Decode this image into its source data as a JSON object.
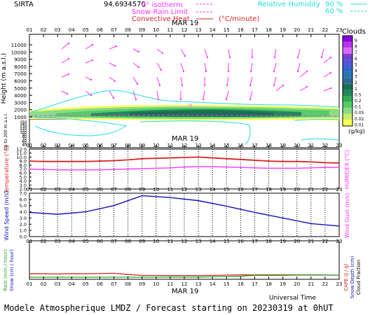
{
  "header": {
    "station": "SIRTA",
    "altitude_value": "94.69",
    "altitude_unit": "34570",
    "legend_isotherm": "0° isotherm",
    "legend_snowrain": "Snow-Rain Limit",
    "legend_convective": "Convective Heat",
    "legend_convective_unit": "(°C/minute)",
    "legend_rh": "Relative Humidity",
    "rh_90": "90 %",
    "rh_60": "60 %"
  },
  "colors": {
    "magenta": "#ff33ff",
    "cyan": "#22dddd",
    "red": "#dd2222",
    "blue": "#1111bb",
    "green": "#22aa22"
  },
  "date_label": "MAR 19",
  "hours": [
    "01",
    "02",
    "03",
    "04",
    "05",
    "06",
    "07",
    "08",
    "09",
    "10",
    "11",
    "12",
    "13",
    "14",
    "15",
    "16",
    "17",
    "18",
    "19",
    "20",
    "21",
    "22",
    "23"
  ],
  "footer": {
    "universal_time": "Universal Time",
    "model_line": "Modele Atmospherique LMDZ / Forecast starting on 20230319 at 0hUT"
  },
  "clouds_legend": {
    "title": "Clouds",
    "unit": "(g/kg)",
    "labels": [
      "9",
      "8",
      "7",
      "6",
      "5",
      "4",
      "3",
      "2",
      "1",
      "0.5",
      "0.2",
      "0.1",
      "0.05",
      "0.02",
      "0.01"
    ],
    "colors": [
      "#8800dd",
      "#bb33ee",
      "#dd66ff",
      "#7744cc",
      "#5555dd",
      "#3366cc",
      "#2277aa",
      "#336699",
      "#1a6e55",
      "#228855",
      "#33aa55",
      "#55cc66",
      "#88dd88",
      "#ccee66",
      "#ffff55"
    ]
  },
  "chart_data": [
    {
      "type": "heatmap",
      "title": "Clouds",
      "ylabel": "Height (m a.s.l.)",
      "ylabel_low": "Up to 200 m a.s.l.",
      "yticks_upper": [
        "11000",
        "10000",
        "9000",
        "8000",
        "7000",
        "6000",
        "5000",
        "4000",
        "3000",
        "2000",
        "1000"
      ],
      "yticks_lower": [
        "150",
        "140",
        "130",
        "120",
        "110",
        "100",
        "90",
        "80",
        "70",
        "60",
        "50",
        "40"
      ],
      "isotherm_label": "-10"
    },
    {
      "type": "line",
      "ylabel_left": "Temperature (°C)",
      "ylabel_right": "HUMIDEX (°C)",
      "yticks": [
        "12.0",
        "11.0",
        "10.0",
        "9.0",
        "8.0",
        "7.0",
        "6.0",
        "5.0",
        "4.0",
        "3.0",
        "2.0"
      ],
      "ylim": [
        2,
        12
      ],
      "x": [
        1,
        2,
        3,
        4,
        5,
        6,
        7,
        8,
        9,
        10,
        11,
        12,
        13,
        14,
        15,
        16,
        17,
        18,
        19,
        20,
        21,
        22,
        23
      ],
      "series": [
        {
          "name": "Temperature",
          "values": [
            9.0,
            8.9,
            8.9,
            8.9,
            8.9,
            9.0,
            9.1,
            9.3,
            9.6,
            9.7,
            9.8,
            9.9,
            10.0,
            9.8,
            9.6,
            9.4,
            9.2,
            9.0,
            8.9,
            8.9,
            8.8,
            8.6,
            8.5
          ]
        },
        {
          "values": [
            7.0,
            6.9,
            6.8,
            6.8,
            6.8,
            6.8,
            6.9,
            7.0,
            7.1,
            7.2,
            7.3,
            7.5,
            7.6,
            7.6,
            7.5,
            7.4,
            7.3,
            7.2,
            7.2,
            7.2,
            7.3,
            7.4,
            7.4
          ]
        }
      ]
    },
    {
      "type": "line",
      "ylabel_left": "Wind Speed (m/s)",
      "ylabel_right": "Wind Gust (m/s)",
      "yticks": [
        "7.0",
        "6.0",
        "5.0",
        "4.0",
        "3.0",
        "2.0",
        "1.0",
        "0.0"
      ],
      "ylim": [
        0,
        7
      ],
      "x": [
        1,
        3,
        5,
        7,
        9,
        11,
        13,
        15,
        17,
        19,
        21,
        23
      ],
      "series": [
        {
          "name": "Wind Speed",
          "values": [
            3.9,
            3.6,
            4.0,
            5.0,
            6.6,
            6.3,
            5.8,
            4.9,
            3.9,
            3.0,
            2.1,
            1.7
          ]
        }
      ]
    },
    {
      "type": "line",
      "ylabel_left_1": "Rain (mm / hour)",
      "ylabel_left_2": "Snow (cm / hour)",
      "ylabel_right_1": "CAPE (J / g)",
      "ylabel_right_2": "Snow Depth (cm)",
      "ylabel_right_3": "Cloud Fraction",
      "x": [
        1,
        2,
        3,
        4,
        5,
        6,
        7,
        8,
        9,
        10,
        11,
        12,
        13,
        14,
        15,
        16,
        17,
        18,
        19,
        20,
        21,
        22,
        23
      ],
      "series": [
        {
          "name": "CAPE",
          "values": [
            0.3,
            0.3,
            0.28,
            0.3,
            0.3,
            0.32,
            0.34,
            0.24,
            0.15,
            0.15,
            0.14,
            0.14,
            0.14,
            0.16,
            0.18,
            0.2,
            0.2,
            0.2,
            0.2,
            0.2,
            0.2,
            0.19,
            0.18
          ]
        },
        {
          "name": "Cloud Fraction",
          "values": [
            0,
            0,
            0,
            0,
            0,
            0,
            0,
            0,
            0,
            0,
            0,
            0,
            0,
            0.04,
            0.06,
            0.08,
            0.16,
            0.16,
            0.16,
            0.18,
            0.18,
            0.18,
            0.18
          ]
        }
      ]
    }
  ]
}
